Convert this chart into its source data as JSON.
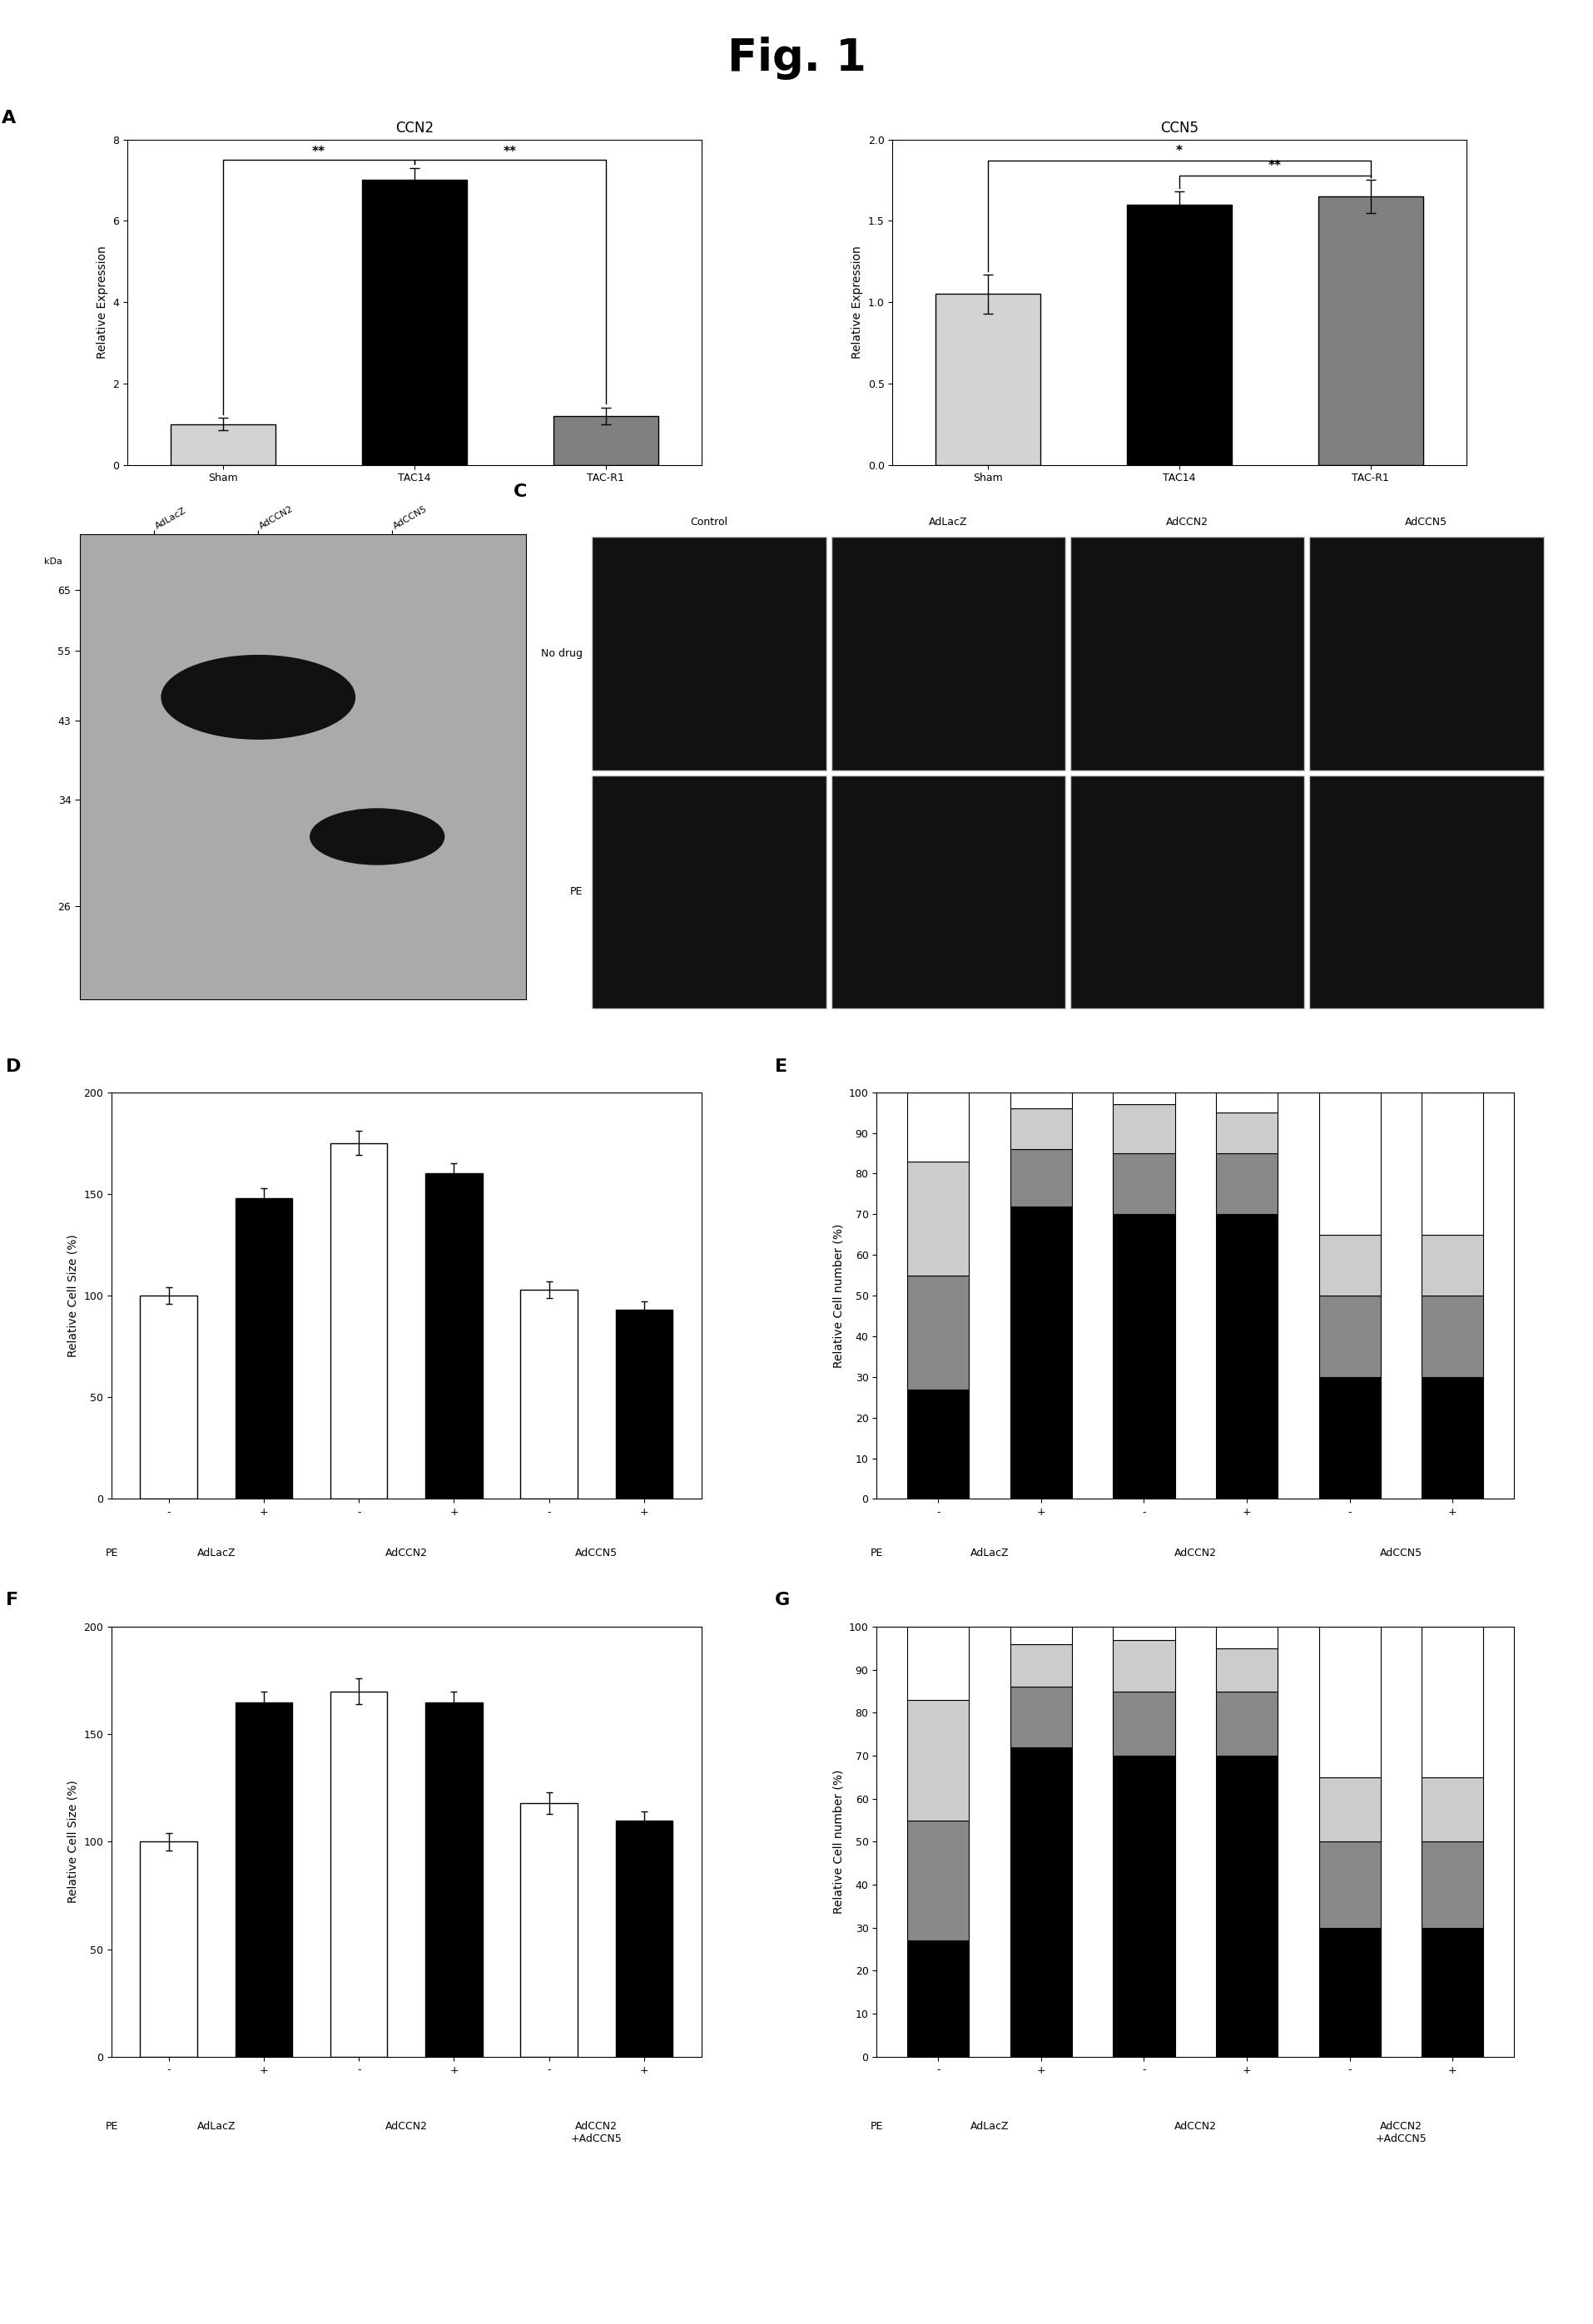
{
  "title": "Fig. 1",
  "panel_A_left": {
    "title": "CCN2",
    "categories": [
      "Sham",
      "TAC14",
      "TAC-R1"
    ],
    "values": [
      1.0,
      7.0,
      1.2
    ],
    "errors": [
      0.15,
      0.3,
      0.2
    ],
    "colors": [
      "#d3d3d3",
      "#000000",
      "#808080"
    ],
    "ylabel": "Relative Expression",
    "ylim": [
      0,
      8
    ],
    "yticks": [
      0,
      2,
      4,
      6,
      8
    ]
  },
  "panel_A_right": {
    "title": "CCN5",
    "categories": [
      "Sham",
      "TAC14",
      "TAC-R1"
    ],
    "values": [
      1.05,
      1.6,
      1.65
    ],
    "errors": [
      0.12,
      0.08,
      0.1
    ],
    "colors": [
      "#d3d3d3",
      "#000000",
      "#808080"
    ],
    "ylabel": "Relative Expression",
    "ylim": [
      0,
      2
    ],
    "yticks": [
      0,
      0.5,
      1.0,
      1.5,
      2.0
    ]
  },
  "panel_D": {
    "values": [
      100,
      148,
      175,
      160,
      103,
      93
    ],
    "errors": [
      4,
      5,
      6,
      5,
      4,
      4
    ],
    "colors": [
      "#ffffff",
      "#000000",
      "#ffffff",
      "#000000",
      "#ffffff",
      "#000000"
    ],
    "ylabel": "Relative Cell Size (%)",
    "ylim": [
      0,
      200
    ],
    "yticks": [
      0,
      50,
      100,
      150,
      200
    ],
    "xlabel_groups": [
      "AdLacZ",
      "AdCCN2",
      "AdCCN5"
    ],
    "pe_labels": [
      "-",
      "+",
      "-",
      "+",
      "-",
      "+"
    ]
  },
  "panel_E": {
    "black_vals": [
      27,
      72,
      70,
      70,
      30,
      30
    ],
    "gray_vals": [
      28,
      14,
      15,
      15,
      20,
      20
    ],
    "lightgray_vals": [
      28,
      10,
      12,
      10,
      15,
      15
    ],
    "white_vals": [
      17,
      4,
      3,
      5,
      35,
      35
    ],
    "ylabel": "Relative Cell number (%)",
    "ylim": [
      0,
      100
    ],
    "yticks": [
      0,
      10,
      20,
      30,
      40,
      50,
      60,
      70,
      80,
      90,
      100
    ],
    "xlabel_groups": [
      "AdLacZ",
      "AdCCN2",
      "AdCCN5"
    ],
    "pe_labels": [
      "-",
      "+",
      "-",
      "+",
      "-",
      "+"
    ]
  },
  "panel_F": {
    "values": [
      100,
      165,
      170,
      165,
      118,
      110
    ],
    "errors": [
      4,
      5,
      6,
      5,
      5,
      4
    ],
    "colors": [
      "#ffffff",
      "#000000",
      "#ffffff",
      "#000000",
      "#ffffff",
      "#000000"
    ],
    "ylabel": "Relative Cell Size (%)",
    "ylim": [
      0,
      200
    ],
    "yticks": [
      0,
      50,
      100,
      150,
      200
    ],
    "xlabel_groups": [
      "AdLacZ",
      "AdCCN2",
      "AdCCN2\n+AdCCN5"
    ],
    "pe_labels": [
      "-",
      "+",
      "-",
      "+",
      "-",
      "+"
    ]
  },
  "panel_G": {
    "black_vals": [
      27,
      72,
      70,
      70,
      30,
      30
    ],
    "gray_vals": [
      28,
      14,
      15,
      15,
      20,
      20
    ],
    "lightgray_vals": [
      28,
      10,
      12,
      10,
      15,
      15
    ],
    "white_vals": [
      17,
      4,
      3,
      5,
      35,
      35
    ],
    "ylabel": "Relative Cell number (%)",
    "ylim": [
      0,
      100
    ],
    "yticks": [
      0,
      10,
      20,
      30,
      40,
      50,
      60,
      70,
      80,
      90,
      100
    ],
    "xlabel_groups": [
      "AdLacZ",
      "AdCCN2",
      "AdCCN2\n+AdCCN5"
    ],
    "pe_labels": [
      "-",
      "+",
      "-",
      "+",
      "-",
      "+"
    ]
  },
  "background_color": "#ffffff"
}
